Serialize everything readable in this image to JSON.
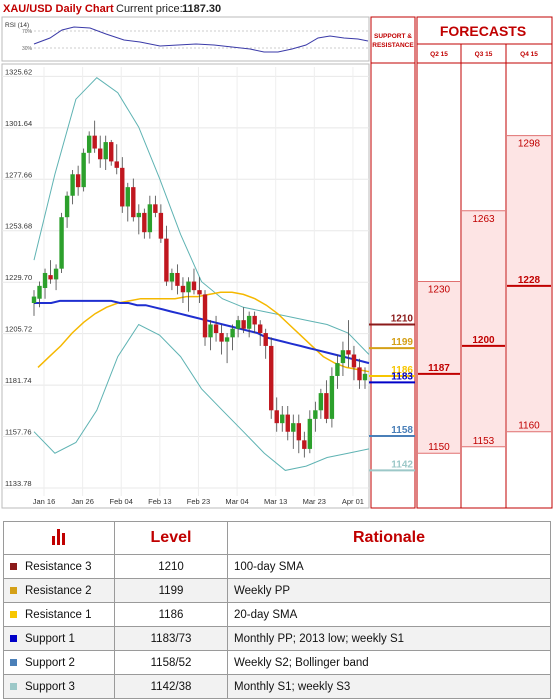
{
  "header": {
    "title": "XAU/USD Daily Chart",
    "price_label": "Current price:",
    "price_value": "1187.30"
  },
  "rsi": {
    "label": "RSI (14)",
    "levels": [
      "70%",
      "30%"
    ]
  },
  "colors": {
    "accent": "#c00000",
    "sma_blue": "#1f2fd0",
    "sma_yellow": "#f5b800",
    "bollinger": "#5fb3b3",
    "bull": "#2ca02c",
    "bear": "#c0171f",
    "r3": "#8b1a1a",
    "r2": "#d4a017",
    "r1": "#f7c600",
    "s1": "#0000c8",
    "s2": "#4a7fb8",
    "s3": "#9cc8c8"
  },
  "chart_data": {
    "type": "candlestick",
    "ylim": [
      1128,
      1330
    ],
    "y_ticks": [
      1325.62,
      1301.64,
      1277.66,
      1253.68,
      1229.7,
      1205.72,
      1181.74,
      1157.76,
      1133.78
    ],
    "x_ticks": [
      "Jan 16",
      "Jan 26",
      "Feb 04",
      "Feb 13",
      "Feb 23",
      "Mar 04",
      "Mar 13",
      "Mar 23",
      "Apr 01"
    ],
    "candles": [
      [
        1220,
        1226,
        1214,
        1223
      ],
      [
        1222,
        1230,
        1218,
        1228
      ],
      [
        1227,
        1236,
        1222,
        1234
      ],
      [
        1233,
        1240,
        1229,
        1231
      ],
      [
        1231,
        1238,
        1226,
        1236
      ],
      [
        1236,
        1262,
        1234,
        1260
      ],
      [
        1260,
        1272,
        1255,
        1270
      ],
      [
        1270,
        1282,
        1266,
        1280
      ],
      [
        1280,
        1284,
        1270,
        1274
      ],
      [
        1274,
        1292,
        1272,
        1290
      ],
      [
        1290,
        1300,
        1285,
        1298
      ],
      [
        1298,
        1305,
        1290,
        1292
      ],
      [
        1292,
        1298,
        1283,
        1287
      ],
      [
        1287,
        1298,
        1282,
        1295
      ],
      [
        1295,
        1296,
        1284,
        1286
      ],
      [
        1286,
        1294,
        1280,
        1283
      ],
      [
        1283,
        1288,
        1262,
        1265
      ],
      [
        1265,
        1276,
        1258,
        1274
      ],
      [
        1274,
        1278,
        1258,
        1260
      ],
      [
        1260,
        1266,
        1252,
        1262
      ],
      [
        1262,
        1264,
        1250,
        1253
      ],
      [
        1253,
        1270,
        1250,
        1266
      ],
      [
        1266,
        1270,
        1260,
        1262
      ],
      [
        1262,
        1266,
        1248,
        1250
      ],
      [
        1250,
        1256,
        1228,
        1230
      ],
      [
        1230,
        1236,
        1226,
        1234
      ],
      [
        1234,
        1238,
        1224,
        1228
      ],
      [
        1228,
        1232,
        1220,
        1225
      ],
      [
        1225,
        1232,
        1216,
        1230
      ],
      [
        1230,
        1236,
        1224,
        1226
      ],
      [
        1226,
        1232,
        1220,
        1224
      ],
      [
        1224,
        1226,
        1200,
        1204
      ],
      [
        1204,
        1212,
        1198,
        1210
      ],
      [
        1210,
        1214,
        1202,
        1206
      ],
      [
        1206,
        1210,
        1196,
        1202
      ],
      [
        1202,
        1206,
        1192,
        1204
      ],
      [
        1204,
        1210,
        1198,
        1208
      ],
      [
        1208,
        1214,
        1204,
        1212
      ],
      [
        1212,
        1218,
        1206,
        1208
      ],
      [
        1208,
        1216,
        1204,
        1214
      ],
      [
        1214,
        1216,
        1206,
        1210
      ],
      [
        1210,
        1212,
        1200,
        1206
      ],
      [
        1206,
        1208,
        1194,
        1200
      ],
      [
        1200,
        1204,
        1166,
        1170
      ],
      [
        1170,
        1176,
        1160,
        1164
      ],
      [
        1164,
        1172,
        1160,
        1168
      ],
      [
        1168,
        1172,
        1156,
        1160
      ],
      [
        1160,
        1168,
        1152,
        1164
      ],
      [
        1164,
        1168,
        1150,
        1156
      ],
      [
        1156,
        1160,
        1148,
        1152
      ],
      [
        1152,
        1170,
        1150,
        1166
      ],
      [
        1166,
        1174,
        1160,
        1170
      ],
      [
        1170,
        1180,
        1166,
        1178
      ],
      [
        1178,
        1184,
        1164,
        1166
      ],
      [
        1166,
        1190,
        1162,
        1186
      ],
      [
        1186,
        1196,
        1180,
        1192
      ],
      [
        1192,
        1202,
        1186,
        1198
      ],
      [
        1198,
        1212,
        1190,
        1196
      ],
      [
        1196,
        1200,
        1184,
        1190
      ],
      [
        1190,
        1194,
        1180,
        1184
      ],
      [
        1184,
        1190,
        1180,
        1187
      ]
    ],
    "sma_blue": [
      1220,
      1220,
      1220,
      1221,
      1221,
      1221,
      1221,
      1221,
      1221,
      1221,
      1220,
      1220,
      1219,
      1219,
      1218,
      1217,
      1216,
      1215,
      1214,
      1213,
      1212,
      1211,
      1210,
      1209,
      1208,
      1207,
      1206,
      1204,
      1203,
      1202,
      1201,
      1200,
      1199,
      1198,
      1197,
      1196,
      1195,
      1194,
      1193,
      1192
    ],
    "sma_yellow": [
      1190,
      1195,
      1200,
      1206,
      1211,
      1215,
      1218,
      1220,
      1221,
      1222,
      1222,
      1222,
      1222,
      1223,
      1223,
      1224,
      1225,
      1225,
      1224,
      1222,
      1219,
      1215,
      1210,
      1205,
      1200,
      1195,
      1192,
      1190,
      1189,
      1188
    ],
    "boll_upper": [
      1240,
      1280,
      1315,
      1325,
      1318,
      1302,
      1278,
      1252,
      1230,
      1222,
      1218,
      1216,
      1214,
      1212,
      1210,
      1206,
      1196
    ],
    "boll_lower": [
      1160,
      1150,
      1155,
      1170,
      1195,
      1210,
      1205,
      1195,
      1180,
      1170,
      1160,
      1150,
      1142,
      1144,
      1148,
      1150,
      1152
    ],
    "sr_levels": [
      {
        "label": "1210",
        "value": 1210,
        "color": "#8b1a1a",
        "name": "Resistance 3"
      },
      {
        "label": "1199",
        "value": 1199,
        "color": "#d4a017",
        "name": "Resistance 2"
      },
      {
        "label": "1186",
        "value": 1186,
        "color": "#f7c600",
        "name": "Resistance 1"
      },
      {
        "label": "1183",
        "value": 1183,
        "color": "#0000c8",
        "name": "Support 1"
      },
      {
        "label": "1158",
        "value": 1158,
        "color": "#4a7fb8",
        "name": "Support 2"
      },
      {
        "label": "1142",
        "value": 1142,
        "color": "#9cc8c8",
        "name": "Support 3"
      }
    ],
    "forecasts": {
      "title": "FORECASTS",
      "sr_header": "SUPPORT & RESISTANCE",
      "columns": [
        {
          "name": "Q2 15",
          "high": 1230,
          "mid": 1187,
          "low": 1150
        },
        {
          "name": "Q3 15",
          "high": 1263,
          "mid": 1200,
          "low": 1153
        },
        {
          "name": "Q4 15",
          "high": 1298,
          "mid": 1228,
          "low": 1160
        }
      ]
    }
  },
  "table": {
    "headers": [
      "Level",
      "Rationale"
    ],
    "rows": [
      {
        "name": "Resistance 3",
        "level": "1210",
        "rationale": "100-day SMA",
        "color": "#8b1a1a"
      },
      {
        "name": "Resistance 2",
        "level": "1199",
        "rationale": "Weekly PP",
        "color": "#d4a017"
      },
      {
        "name": "Resistance 1",
        "level": "1186",
        "rationale": "20-day SMA",
        "color": "#f7c600"
      },
      {
        "name": "Support 1",
        "level": "1183/73",
        "rationale": "Monthly PP; 2013 low; weekly S1",
        "color": "#0000c8"
      },
      {
        "name": "Support 2",
        "level": "1158/52",
        "rationale": "Weekly S2; Bollinger band",
        "color": "#4a7fb8"
      },
      {
        "name": "Support 3",
        "level": "1142/38",
        "rationale": "Monthly S1; weekly S3",
        "color": "#9cc8c8"
      }
    ]
  }
}
